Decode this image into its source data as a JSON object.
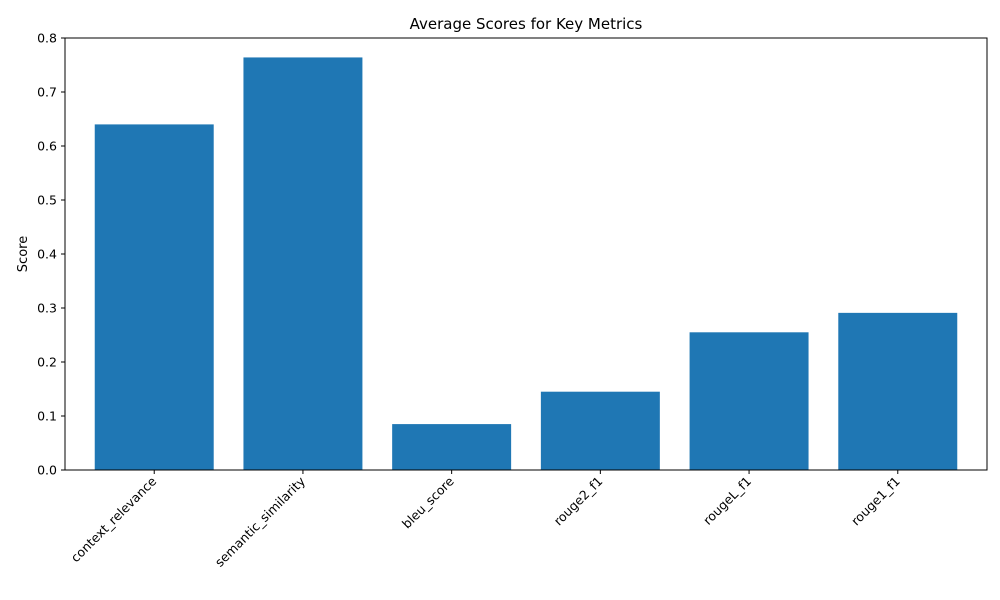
{
  "chart_data": {
    "type": "bar",
    "title": "Average Scores for Key Metrics",
    "xlabel": "",
    "ylabel": "Score",
    "categories": [
      "context_relevance",
      "semantic_similarity",
      "bleu_score",
      "rouge2_f1",
      "rougeL_f1",
      "rouge1_f1"
    ],
    "values": [
      0.64,
      0.764,
      0.085,
      0.145,
      0.255,
      0.291
    ],
    "ylim": [
      0,
      0.8
    ],
    "yticks": [
      0.0,
      0.1,
      0.2,
      0.3,
      0.4,
      0.5,
      0.6,
      0.7,
      0.8
    ],
    "ytick_labels": [
      "0.0",
      "0.1",
      "0.2",
      "0.3",
      "0.4",
      "0.5",
      "0.6",
      "0.7",
      "0.8"
    ],
    "x_tick_rotation": "45 degrees",
    "grid": false,
    "legend": "none",
    "bar_color": "#1f77b4"
  }
}
